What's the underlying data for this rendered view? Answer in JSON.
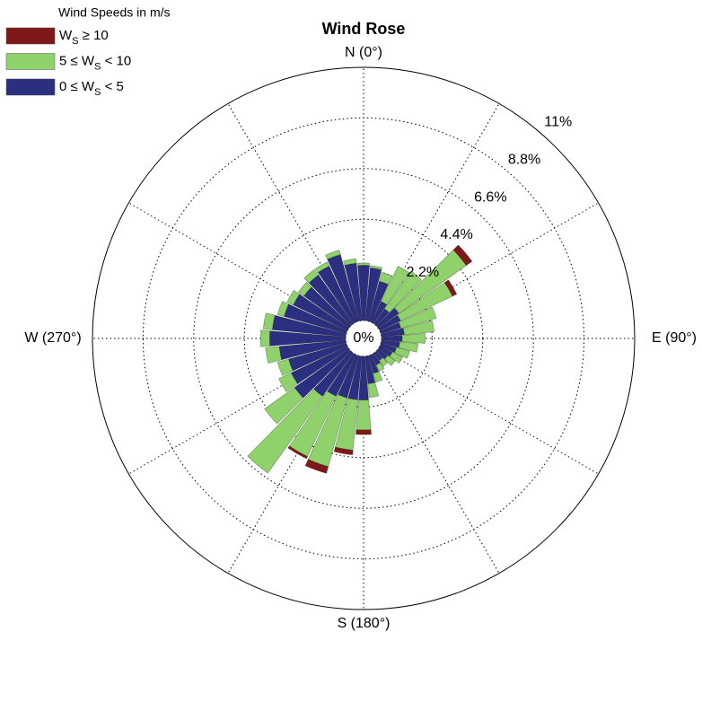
{
  "chart_data": {
    "type": "windrose",
    "title": "Wind Rose",
    "legend_title": "Wind Speeds in m/s",
    "x": [
      0,
      10,
      20,
      30,
      40,
      50,
      60,
      70,
      80,
      90,
      100,
      110,
      120,
      130,
      140,
      150,
      160,
      170,
      180,
      190,
      200,
      210,
      220,
      230,
      240,
      250,
      260,
      270,
      280,
      290,
      300,
      310,
      320,
      330,
      340,
      350
    ],
    "series": [
      {
        "name": "0 ≤ W_S < 5",
        "color": "#2b2f7f",
        "values": [
          2.4,
          2.3,
          1.8,
          1.0,
          0.8,
          1.1,
          1.0,
          0.9,
          1.0,
          0.9,
          0.8,
          0.7,
          0.6,
          0.5,
          0.4,
          0.5,
          0.8,
          1.2,
          1.9,
          1.9,
          1.9,
          2.0,
          2.3,
          2.9,
          2.7,
          2.6,
          2.9,
          3.3,
          3.2,
          2.8,
          2.6,
          2.4,
          2.6,
          2.7,
          3.0,
          2.5
        ]
      },
      {
        "name": "5 ≤ W_S < 10",
        "color": "#8fd16a",
        "values": [
          0.1,
          0.1,
          0.4,
          1.7,
          2.0,
          3.6,
          2.5,
          1.6,
          1.3,
          1.0,
          0.8,
          0.6,
          0.5,
          0.4,
          0.3,
          0.3,
          0.4,
          0.6,
          1.3,
          2.2,
          3.1,
          2.9,
          4.1,
          1.6,
          0.6,
          0.5,
          0.6,
          0.4,
          0.4,
          0.3,
          0.3,
          0.3,
          0.3,
          0.2,
          0.2,
          0.2
        ]
      },
      {
        "name": "W_S ≥ 10",
        "color": "#7f1818",
        "values": [
          0,
          0,
          0,
          0,
          0,
          0.3,
          0.2,
          0,
          0,
          0,
          0,
          0,
          0,
          0,
          0,
          0,
          0,
          0,
          0.2,
          0.2,
          0.3,
          0.1,
          0,
          0,
          0,
          0,
          0,
          0,
          0,
          0,
          0,
          0,
          0,
          0,
          0,
          0
        ]
      }
    ],
    "rlim": [
      0,
      11
    ],
    "rticks": [
      {
        "value": 0,
        "label": "0%"
      },
      {
        "value": 2.2,
        "label": "2.2%"
      },
      {
        "value": 4.4,
        "label": "4.4%"
      },
      {
        "value": 6.6,
        "label": "6.6%"
      },
      {
        "value": 8.8,
        "label": "8.8%"
      },
      {
        "value": 11,
        "label": "11%"
      }
    ],
    "thetaticks": [
      {
        "value": 0,
        "label": "N (0°)"
      },
      {
        "value": 90,
        "label": "E (90°)"
      },
      {
        "value": 180,
        "label": "S (180°)"
      },
      {
        "value": 270,
        "label": "W (270°)"
      }
    ]
  }
}
